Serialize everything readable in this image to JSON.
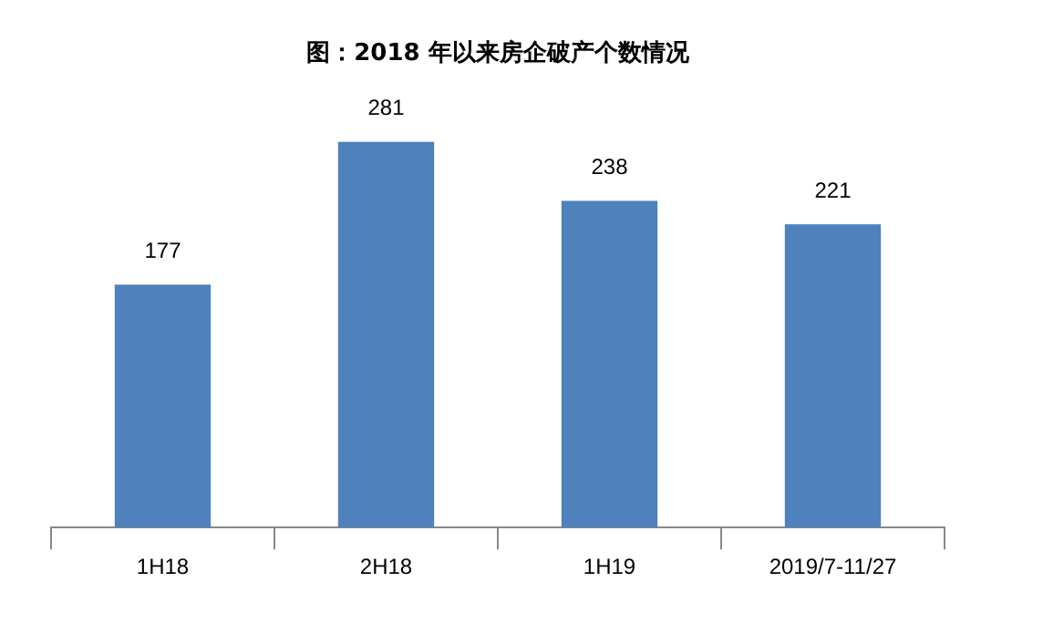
{
  "chart_data": {
    "type": "bar",
    "title": "图：2018 年以来房企破产个数情况",
    "categories": [
      "1H18",
      "2H18",
      "1H19",
      "2019/7-11/27"
    ],
    "values": [
      177,
      281,
      238,
      221
    ],
    "color": "#4f81bd",
    "data_labels": true,
    "legend": false
  }
}
